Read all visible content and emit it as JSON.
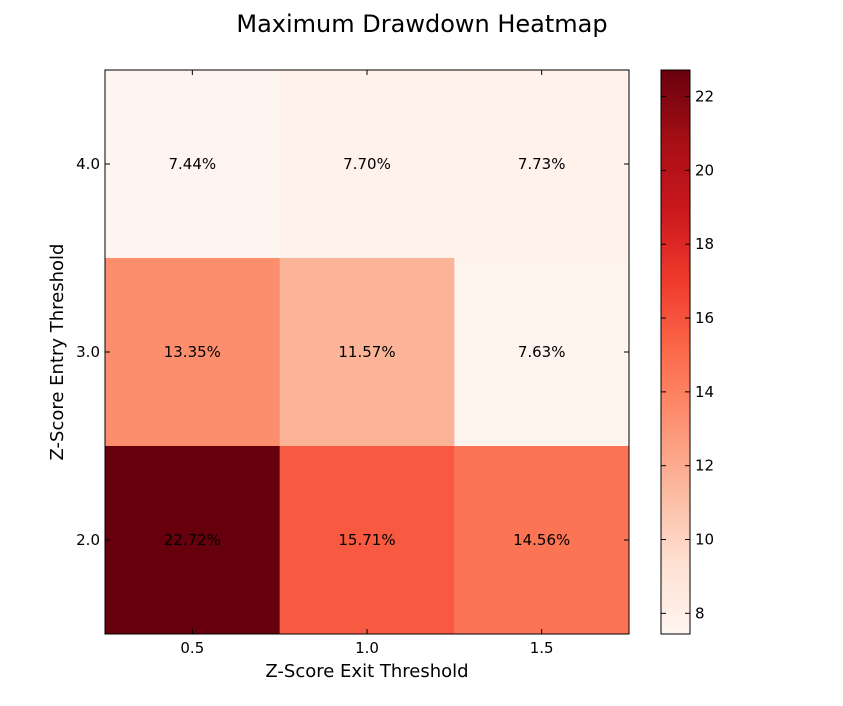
{
  "chart_data": {
    "type": "heatmap",
    "title": "Maximum Drawdown Heatmap",
    "xlabel": "Z-Score Exit Threshold",
    "ylabel": "Z-Score Entry Threshold",
    "x_categories": [
      "0.5",
      "1.0",
      "1.5"
    ],
    "y_categories": [
      "4.0",
      "3.0",
      "2.0"
    ],
    "values": [
      [
        7.44,
        7.7,
        7.73
      ],
      [
        13.35,
        11.57,
        7.63
      ],
      [
        22.72,
        15.71,
        14.56
      ]
    ],
    "cell_labels": [
      [
        "7.44%",
        "7.70%",
        "7.73%"
      ],
      [
        "13.35%",
        "11.57%",
        "7.63%"
      ],
      [
        "22.72%",
        "15.71%",
        "14.56%"
      ]
    ],
    "colormap": "Reds",
    "colorbar": {
      "vmin": 7.44,
      "vmax": 22.72,
      "ticks": [
        8,
        10,
        12,
        14,
        16,
        18,
        20,
        22
      ],
      "tick_labels": [
        "8",
        "10",
        "12",
        "14",
        "16",
        "18",
        "20",
        "22"
      ]
    },
    "grid": false,
    "legend": "none"
  }
}
